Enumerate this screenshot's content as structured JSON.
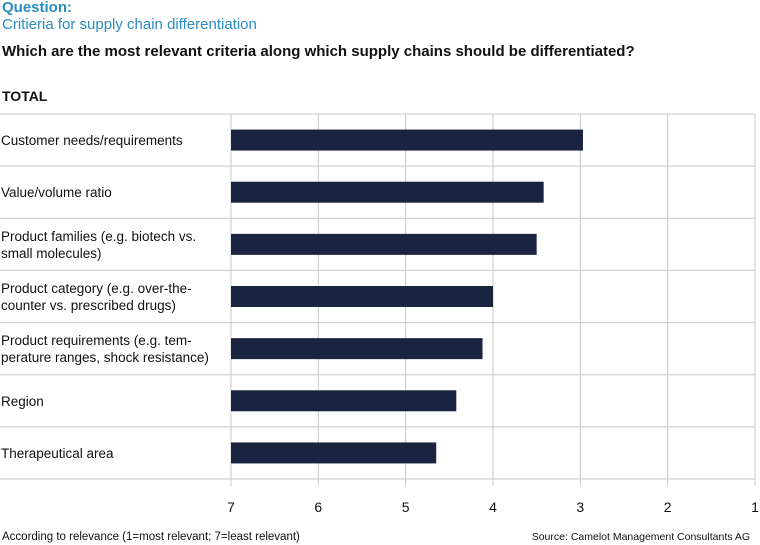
{
  "colors": {
    "accent": "#2a8cbf",
    "bar": "#1a2340",
    "grid": "#c8c8c8",
    "text": "#111111"
  },
  "header": {
    "question_label": "Question:",
    "question_title": "Critieria for supply chain differentiation",
    "headline": "Which are the most relevant criteria along which supply chains should be differentiated?",
    "group_label": "TOTAL"
  },
  "footer": {
    "scale_note": "According to relevance (1=most relevant; 7=least relevant)",
    "source": "Source: Camelot Management Consultants AG"
  },
  "chart_data": {
    "type": "bar",
    "orientation": "horizontal",
    "title": "TOTAL",
    "xlabel": "According to relevance (1=most relevant; 7=least relevant)",
    "ylabel": "",
    "xlim": [
      7,
      1
    ],
    "xticks": [
      "7",
      "6",
      "5",
      "4",
      "3",
      "2",
      "1"
    ],
    "grid": true,
    "categories": [
      [
        "Customer needs/requirements"
      ],
      [
        "Value/volume ratio"
      ],
      [
        "Product families (e.g. biotech vs.",
        "small molecules)"
      ],
      [
        "Product category (e.g. over-the-",
        "counter vs. prescribed drugs)"
      ],
      [
        "Product requirements (e.g. tem-",
        "perature ranges, shock resistance)"
      ],
      [
        "Region"
      ],
      [
        "Therapeutical area"
      ]
    ],
    "values": [
      2.97,
      3.42,
      3.5,
      4.0,
      4.12,
      4.42,
      4.65
    ]
  }
}
